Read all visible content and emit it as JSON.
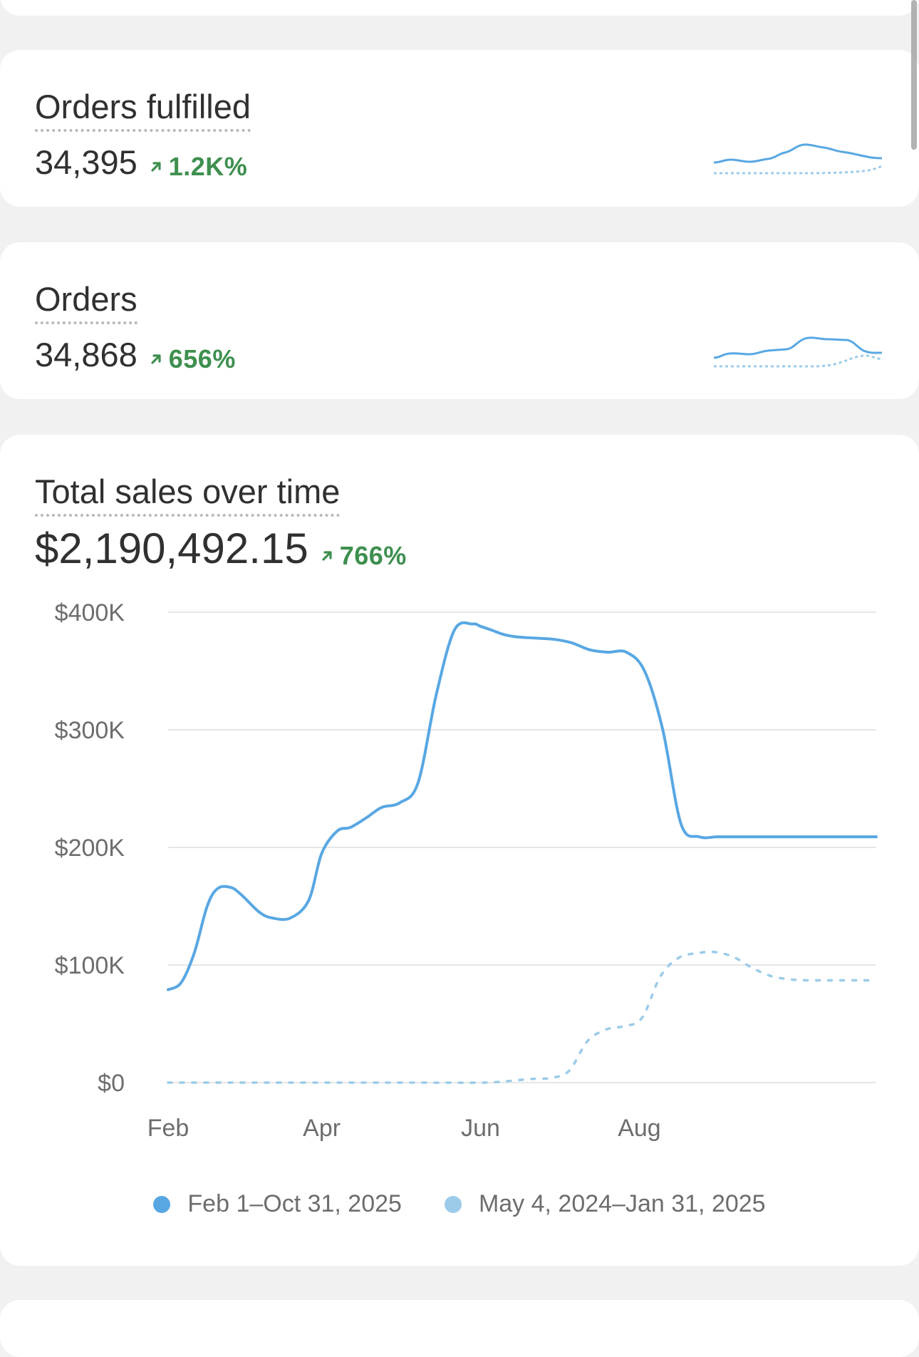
{
  "cards": [
    {
      "title": "Orders fulfilled",
      "value": "34,395",
      "delta": "1.2K%"
    },
    {
      "title": "Orders",
      "value": "34,868",
      "delta": "656%"
    }
  ],
  "sales": {
    "title": "Total sales over time",
    "value": "$2,190,492.15",
    "delta": "766%"
  },
  "colors": {
    "current": "#58a7e3",
    "previous": "#9ccbe9",
    "positive": "#3e8f4f"
  },
  "icons": {
    "delta": "arrow-up-right-icon",
    "legend": "circle-icon"
  },
  "chart_data": {
    "type": "line",
    "title": "Total sales over time",
    "x_ticks": [
      "Feb",
      "Apr",
      "Jun",
      "Aug"
    ],
    "y_ticks": [
      "$400K",
      "$300K",
      "$200K",
      "$100K",
      "$0"
    ],
    "ylim": [
      0,
      400000
    ],
    "grid": true,
    "legend_position": "bottom",
    "series": [
      {
        "name": "Feb 1–Oct 31, 2025",
        "style": "solid",
        "x": [
          "2025-02-01",
          "2025-02-06",
          "2025-02-11",
          "2025-02-16",
          "2025-02-20",
          "2025-02-25",
          "2025-03-01",
          "2025-03-08",
          "2025-03-13",
          "2025-03-20",
          "2025-03-27",
          "2025-04-01",
          "2025-04-07",
          "2025-04-12",
          "2025-04-18",
          "2025-04-24",
          "2025-05-01",
          "2025-05-08",
          "2025-05-15",
          "2025-05-22",
          "2025-05-29",
          "2025-06-01",
          "2025-06-05",
          "2025-06-10",
          "2025-06-15",
          "2025-06-22",
          "2025-06-29",
          "2025-07-06",
          "2025-07-13",
          "2025-07-20",
          "2025-07-27",
          "2025-08-03",
          "2025-08-10",
          "2025-08-17",
          "2025-08-24",
          "2025-08-31",
          "2025-09-07",
          "2025-09-14",
          "2025-09-21",
          "2025-09-28",
          "2025-10-05",
          "2025-10-12",
          "2025-10-19",
          "2025-10-26",
          "2025-10-31"
        ],
        "values": [
          79000,
          85000,
          110000,
          150000,
          165000,
          166000,
          160000,
          145000,
          140000,
          140000,
          155000,
          195000,
          214000,
          217000,
          225000,
          234000,
          238000,
          255000,
          330000,
          385000,
          390000,
          388000,
          385000,
          381000,
          379000,
          378000,
          377000,
          374000,
          368000,
          366000,
          366000,
          350000,
          300000,
          220000,
          209000,
          209000,
          209000,
          209000,
          209000,
          209000,
          209000,
          209000,
          209000,
          209000,
          209000
        ]
      },
      {
        "name": "May 4, 2024–Jan 31, 2025",
        "style": "dashed",
        "x": [
          "2025-02-01",
          "2025-03-01",
          "2025-04-01",
          "2025-05-01",
          "2025-06-01",
          "2025-06-10",
          "2025-06-20",
          "2025-06-28",
          "2025-07-05",
          "2025-07-12",
          "2025-07-19",
          "2025-07-26",
          "2025-08-02",
          "2025-08-09",
          "2025-08-16",
          "2025-08-23",
          "2025-08-30",
          "2025-09-06",
          "2025-09-13",
          "2025-09-20",
          "2025-09-27",
          "2025-10-04",
          "2025-10-11",
          "2025-10-18",
          "2025-10-25",
          "2025-10-31"
        ],
        "values": [
          0,
          0,
          0,
          0,
          0,
          1000,
          3000,
          4000,
          10000,
          35000,
          45000,
          48000,
          55000,
          90000,
          106000,
          110000,
          111000,
          107000,
          98000,
          91000,
          88000,
          87000,
          87000,
          87000,
          87000,
          87000
        ]
      }
    ]
  }
}
